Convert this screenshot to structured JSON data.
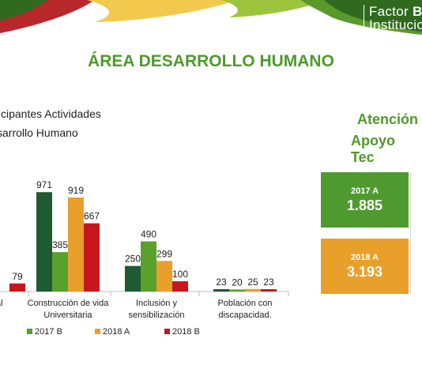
{
  "banner": {
    "line1_prefix": "Factor ",
    "line1_bold": "Bie",
    "line2": "Institucio",
    "colors": {
      "dark_green": "#2f6a1e",
      "mid_green": "#5a9a2c",
      "yellow": "#f2c94c",
      "red": "#b8282b",
      "lime": "#9cc43d"
    }
  },
  "page_title": "ÁREA DESARROLLO HUMANO",
  "chart_title": {
    "line1": "ticipantes Actividades",
    "line2": "sarrollo Humano"
  },
  "side": {
    "heading_line1": "Atención",
    "heading_line2": "Apoyo Tec",
    "stats": [
      {
        "label": "2017 A",
        "value": "1.885",
        "color": "#4f9a2f"
      },
      {
        "label": "2018 A",
        "value": "3.193",
        "color": "#e8a02b"
      }
    ]
  },
  "chart_data": {
    "type": "bar",
    "title": "ticipantes Actividades sarrollo Humano",
    "categories": [
      "ional",
      "Construcción de vida Universitaria",
      "Inclusión y sensibilización",
      "Población con discapacidad."
    ],
    "category_lines": [
      [
        "ional"
      ],
      [
        "Construcción de vida",
        "Universitaria"
      ],
      [
        "Inclusión y",
        "sensibilización"
      ],
      [
        "Población con",
        "discapacidad."
      ]
    ],
    "series": [
      {
        "key": "2017A",
        "name": "",
        "color": "#1f5a32",
        "values": [
          null,
          971,
          250,
          23
        ]
      },
      {
        "key": "2017B",
        "name": "2017 B",
        "color": "#5aa02c",
        "values": [
          null,
          385,
          490,
          20
        ]
      },
      {
        "key": "2018A",
        "name": "2018 A",
        "color": "#e8a02b",
        "values": [
          null,
          919,
          299,
          25
        ]
      },
      {
        "key": "2018B",
        "name": "2018 B",
        "color": "#c8161d",
        "values": [
          79,
          667,
          100,
          23
        ]
      }
    ],
    "data_labels": {
      "0": [
        "",
        "",
        "",
        "79"
      ],
      "1": [
        "971",
        "385",
        "919",
        "667"
      ],
      "2": [
        "250",
        "490",
        "299",
        "100"
      ],
      "3": [
        "23",
        "20",
        "25",
        "23"
      ]
    },
    "ylim": [
      0,
      1050
    ],
    "legend_position": "bottom",
    "grid": false
  }
}
